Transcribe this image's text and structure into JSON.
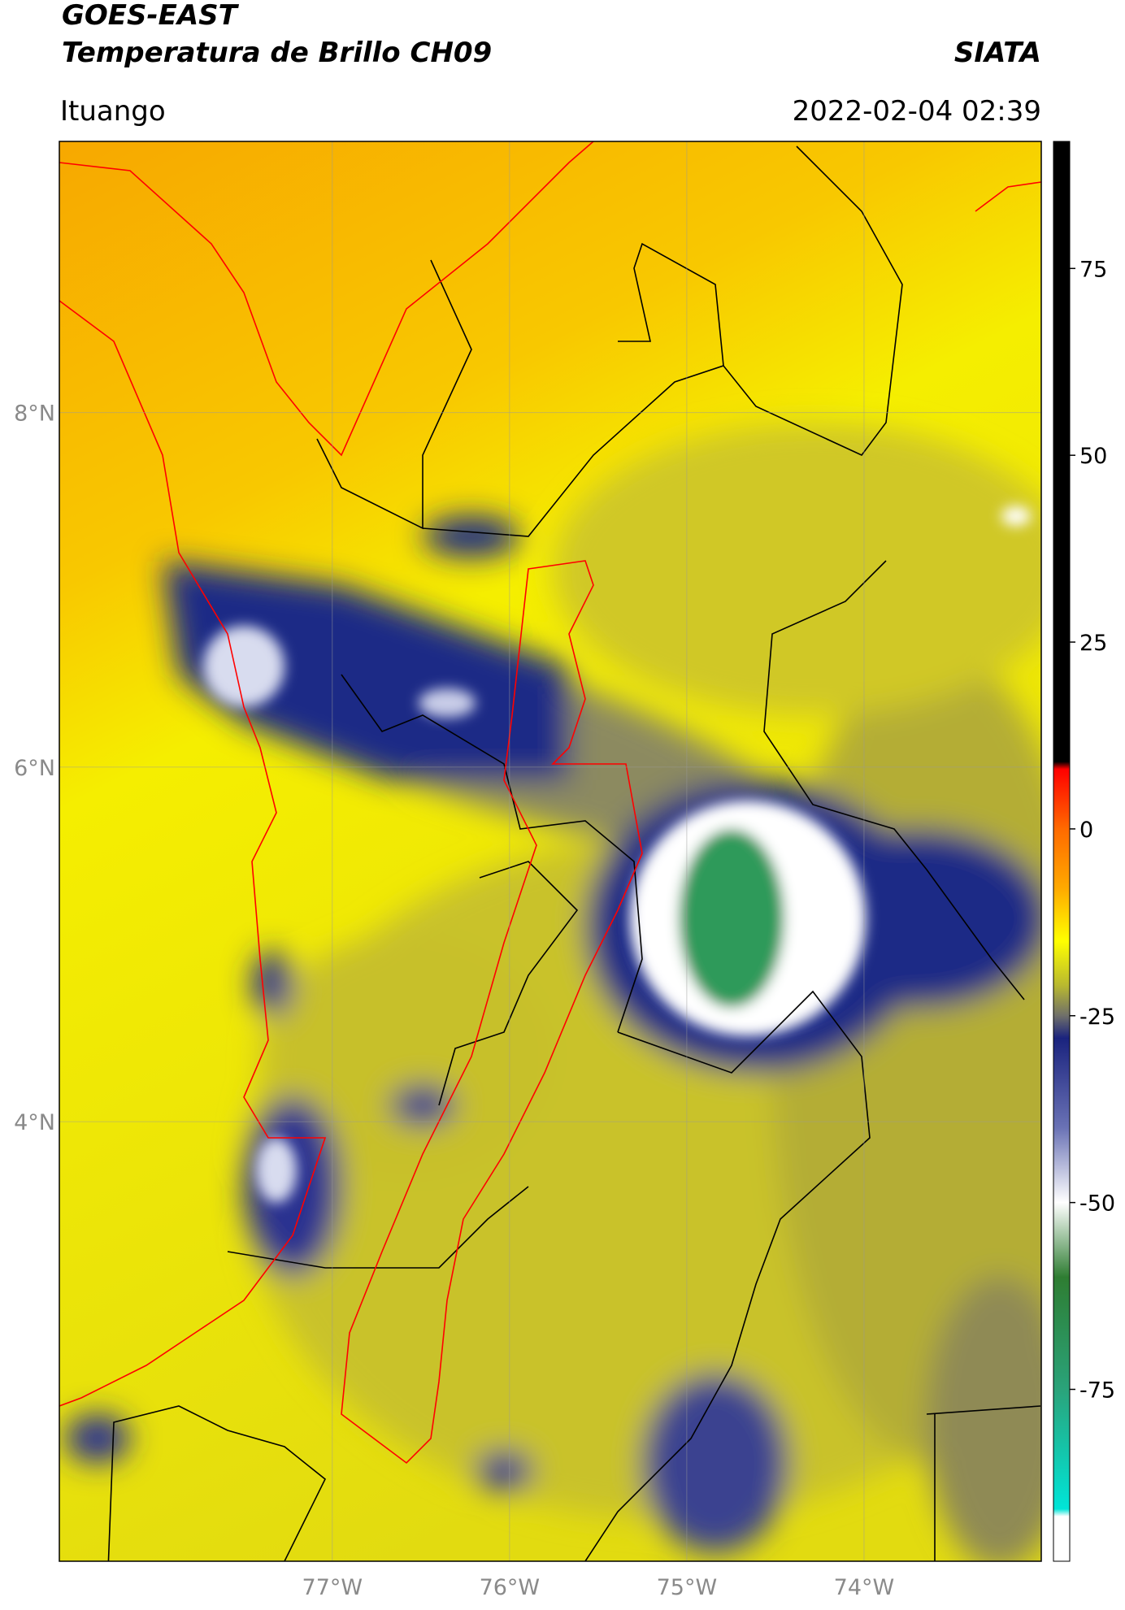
{
  "header": {
    "title": "GOES-EAST",
    "subtitle": "Temperatura de Brillo CH09",
    "source": "SIATA",
    "location": "Ituango",
    "datetime": "2022-02-04 02:39"
  },
  "map": {
    "xlim": [
      -78.54,
      -73.0
    ],
    "ylim": [
      1.52,
      9.53
    ],
    "xticks": [
      {
        "value": -77,
        "label": "77°W"
      },
      {
        "value": -76,
        "label": "76°W"
      },
      {
        "value": -75,
        "label": "75°W"
      },
      {
        "value": -74,
        "label": "74°W"
      }
    ],
    "yticks": [
      {
        "value": 4,
        "label": "4°N"
      },
      {
        "value": 6,
        "label": "6°N"
      },
      {
        "value": 8,
        "label": "8°N"
      }
    ],
    "grid": true
  },
  "colorbar": {
    "lim": [
      -98,
      92
    ],
    "ticks": [
      75,
      50,
      25,
      0,
      -25,
      -50,
      -75
    ],
    "colormap": [
      {
        "value": 92,
        "color": "#000000"
      },
      {
        "value": 9,
        "color": "#000000"
      },
      {
        "value": 8,
        "color": "#ff0000"
      },
      {
        "value": 0,
        "color": "#ff6a00"
      },
      {
        "value": -8,
        "color": "#ffaa00"
      },
      {
        "value": -15,
        "color": "#ffff00"
      },
      {
        "value": -21,
        "color": "#b8b830"
      },
      {
        "value": -25,
        "color": "#6f6f6a"
      },
      {
        "value": -28,
        "color": "#1a237e"
      },
      {
        "value": -40,
        "color": "#6a72b5"
      },
      {
        "value": -50,
        "color": "#ffffff"
      },
      {
        "value": -60,
        "color": "#2e7d32"
      },
      {
        "value": -75,
        "color": "#2aa37a"
      },
      {
        "value": -91,
        "color": "#00e5d8"
      },
      {
        "value": -92,
        "color": "#ffffff"
      },
      {
        "value": -98,
        "color": "#ffffff"
      }
    ]
  }
}
